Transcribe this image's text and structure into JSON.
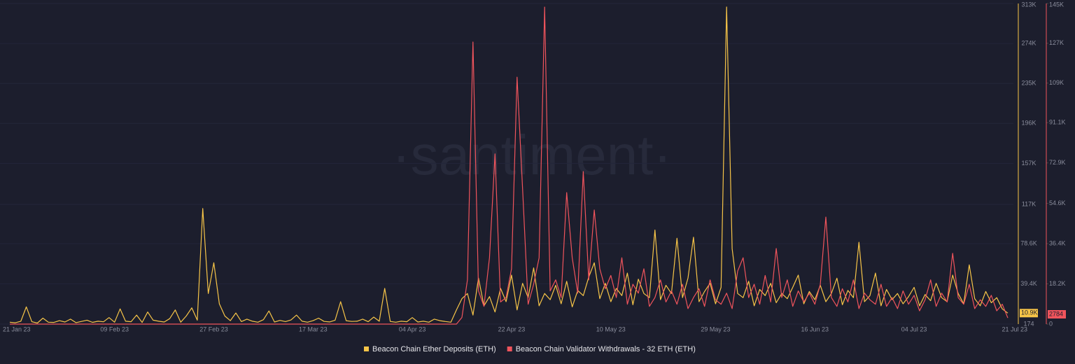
{
  "chart_data": {
    "type": "line",
    "watermark": "·santiment·",
    "categories": [
      "21 Jan 23",
      null,
      null,
      null,
      null,
      null,
      null,
      null,
      null,
      null,
      null,
      null,
      null,
      null,
      null,
      null,
      null,
      null,
      null,
      "09 Feb 23",
      null,
      null,
      null,
      null,
      null,
      null,
      null,
      null,
      null,
      null,
      null,
      null,
      null,
      null,
      null,
      null,
      null,
      "27 Feb 23",
      null,
      null,
      null,
      null,
      null,
      null,
      null,
      null,
      null,
      null,
      null,
      null,
      null,
      null,
      null,
      null,
      null,
      "17 Mar 23",
      null,
      null,
      null,
      null,
      null,
      null,
      null,
      null,
      null,
      null,
      null,
      null,
      null,
      null,
      null,
      null,
      null,
      "04 Apr 23",
      null,
      null,
      null,
      null,
      null,
      null,
      null,
      null,
      null,
      null,
      null,
      null,
      null,
      null,
      null,
      null,
      null,
      "22 Apr 23",
      null,
      null,
      null,
      null,
      null,
      null,
      null,
      null,
      null,
      null,
      null,
      null,
      null,
      null,
      null,
      null,
      null,
      "10 May 23",
      null,
      null,
      null,
      null,
      null,
      null,
      null,
      null,
      null,
      null,
      null,
      null,
      null,
      null,
      null,
      null,
      null,
      null,
      "29 May 23",
      null,
      null,
      null,
      null,
      null,
      null,
      null,
      null,
      null,
      null,
      null,
      null,
      null,
      null,
      null,
      null,
      null,
      "16 Jun 23",
      null,
      null,
      null,
      null,
      null,
      null,
      null,
      null,
      null,
      null,
      null,
      null,
      null,
      null,
      null,
      null,
      null,
      "04 Jul 23",
      null,
      null,
      null,
      null,
      null,
      null,
      null,
      null,
      null,
      null,
      null,
      null,
      null,
      null,
      null,
      null,
      "21 Jul 23"
    ],
    "series": [
      {
        "name": "Beacon Chain Ether Deposits (ETH)",
        "color": "#f7c548",
        "last_label": "10.9K",
        "values": [
          2000,
          1500,
          3000,
          17000,
          2500,
          1200,
          6000,
          2000,
          1800,
          3500,
          2200,
          5000,
          1600,
          2800,
          4000,
          1900,
          3000,
          2400,
          6500,
          2000,
          15000,
          3000,
          2500,
          9000,
          1800,
          12000,
          4000,
          3000,
          2200,
          5500,
          14000,
          2000,
          8000,
          16000,
          4000,
          113000,
          30000,
          60000,
          20000,
          8000,
          3500,
          11000,
          2600,
          5000,
          3000,
          2000,
          4500,
          13000,
          2200,
          3800,
          2600,
          4200,
          9000,
          3000,
          2000,
          3500,
          6000,
          2800,
          2300,
          4000,
          22000,
          3500,
          2800,
          3000,
          5000,
          2500,
          7000,
          3000,
          35000,
          2800,
          2000,
          3000,
          2500,
          6500,
          2200,
          3000,
          2000,
          5000,
          3500,
          2700,
          2000,
          14000,
          25000,
          30000,
          9000,
          45000,
          18000,
          27000,
          12000,
          35000,
          22000,
          48000,
          14000,
          40000,
          26000,
          55000,
          18000,
          30000,
          24000,
          38000,
          20000,
          42000,
          17000,
          33000,
          28000,
          46000,
          60000,
          25000,
          40000,
          22000,
          35000,
          28000,
          50000,
          19000,
          44000,
          30000,
          26000,
          92000,
          24000,
          38000,
          30000,
          84000,
          26000,
          45000,
          85000,
          22000,
          32000,
          40000,
          20000,
          36000,
          309600,
          73800,
          30000,
          26000,
          42000,
          18000,
          34000,
          28000,
          40000,
          21000,
          30000,
          25000,
          36000,
          48000,
          20000,
          32000,
          24000,
          38000,
          22000,
          30000,
          45000,
          19000,
          33000,
          26000,
          80000,
          22000,
          28000,
          50000,
          18000,
          34000,
          24000,
          30000,
          20000,
          27000,
          36000,
          18000,
          29000,
          23000,
          40000,
          26000,
          22000,
          48000,
          30000,
          20000,
          58000,
          25000,
          18000,
          32000,
          21000,
          26000,
          15000,
          10900
        ]
      },
      {
        "name": "Beacon Chain Validator Withdrawals - 32 ETH (ETH)",
        "color": "#f0545c",
        "axis": "y2",
        "last_label": "2784",
        "values": [
          0,
          0,
          0,
          0,
          0,
          0,
          0,
          0,
          0,
          0,
          0,
          0,
          0,
          0,
          0,
          0,
          0,
          0,
          0,
          0,
          0,
          0,
          0,
          0,
          0,
          0,
          0,
          0,
          0,
          0,
          0,
          0,
          0,
          0,
          0,
          0,
          0,
          0,
          0,
          0,
          0,
          0,
          0,
          0,
          0,
          0,
          0,
          0,
          0,
          0,
          0,
          0,
          0,
          0,
          0,
          0,
          0,
          0,
          0,
          0,
          0,
          0,
          0,
          0,
          0,
          0,
          0,
          0,
          0,
          0,
          0,
          0,
          0,
          0,
          0,
          0,
          0,
          0,
          0,
          0,
          0,
          0,
          3000,
          20000,
          127600,
          15000,
          8000,
          30000,
          77000,
          10000,
          12000,
          25000,
          111700,
          61100,
          9000,
          18000,
          30000,
          143400,
          15000,
          20000,
          12000,
          59500,
          30000,
          14000,
          69000,
          20000,
          51600,
          25000,
          16000,
          22000,
          12000,
          30000,
          9000,
          18000,
          14000,
          25000,
          8000,
          12000,
          20000,
          10000,
          15000,
          9000,
          18000,
          7000,
          12000,
          16000,
          8000,
          20000,
          11000,
          9000,
          14000,
          7000,
          24000,
          30000,
          12000,
          18000,
          9000,
          22000,
          10000,
          34200,
          12000,
          20000,
          8000,
          15000,
          10000,
          14000,
          9000,
          18000,
          48400,
          12000,
          8000,
          16000,
          10000,
          20000,
          7000,
          14000,
          11000,
          9000,
          18000,
          8000,
          12000,
          7000,
          15000,
          9000,
          13000,
          6000,
          11000,
          20000,
          8000,
          14000,
          10000,
          32000,
          12000,
          9000,
          18000,
          7000,
          11000,
          8000,
          13000,
          6000,
          9000,
          2784
        ]
      }
    ],
    "ylim": [
      174,
      313000
    ],
    "yticks": [
      174,
      {
        "value": 39400,
        "label": "39.4K"
      },
      {
        "value": 78600,
        "label": "78.6K"
      },
      {
        "value": 117000,
        "label": "117K"
      },
      {
        "value": 157000,
        "label": "157K"
      },
      {
        "value": 196000,
        "label": "196K"
      },
      {
        "value": 235000,
        "label": "235K"
      },
      {
        "value": 274000,
        "label": "274K"
      },
      {
        "value": 313000,
        "label": "313K"
      }
    ],
    "y2lim": [
      0,
      145000
    ],
    "y2ticks": [
      0,
      {
        "value": 18200,
        "label": "18.2K"
      },
      {
        "value": 36400,
        "label": "36.4K"
      },
      {
        "value": 54600,
        "label": "54.6K"
      },
      {
        "value": 72900,
        "label": "72.9K"
      },
      {
        "value": 91100,
        "label": "91.1K"
      },
      {
        "value": 109000,
        "label": "109K"
      },
      {
        "value": 127000,
        "label": "127K"
      },
      {
        "value": 145000,
        "label": "145K"
      }
    ],
    "grid": true
  }
}
